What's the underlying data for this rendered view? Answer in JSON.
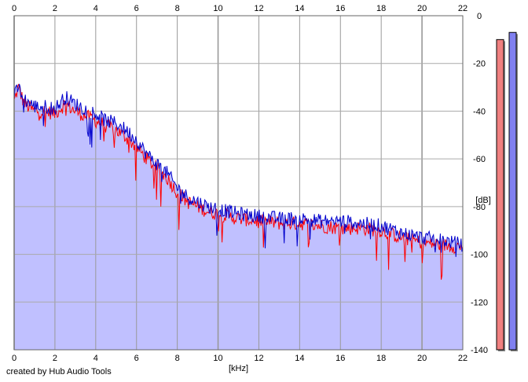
{
  "chart_data": {
    "type": "area",
    "title": "",
    "xlabel": "[kHz]",
    "ylabel": "[dB]",
    "xlim": [
      0,
      22
    ],
    "ylim": [
      -140,
      0
    ],
    "x_ticks_top": [
      "0",
      "2",
      "4",
      "6",
      "8",
      "10",
      "12",
      "14",
      "16",
      "18",
      "20",
      "22"
    ],
    "x_ticks_bottom": [
      "0",
      "2",
      "4",
      "6",
      "8",
      "10",
      "12",
      "14",
      "16",
      "18",
      "20",
      "22"
    ],
    "y_ticks": [
      "0",
      "-20",
      "-40",
      "-60",
      "-80",
      "-100",
      "-120",
      "-140"
    ],
    "grid": true,
    "colors": {
      "fill": "#c0c0ff",
      "red": "#ff0000",
      "blue": "#0000cc",
      "grid": "#aaaaaa"
    },
    "series": [
      {
        "color": "red",
        "x": [
          0,
          0.2,
          0.5,
          1,
          1.5,
          2,
          2.5,
          3,
          3.5,
          4,
          4.5,
          5,
          5.5,
          6,
          6.5,
          7,
          7.5,
          8,
          8.5,
          9,
          9.5,
          10,
          11,
          12,
          13,
          14,
          15,
          16,
          17,
          18,
          19,
          20,
          21,
          22
        ],
        "y": [
          -36,
          -30,
          -37,
          -40,
          -40,
          -41,
          -37,
          -40,
          -42,
          -44,
          -46,
          -48,
          -51,
          -55,
          -60,
          -64,
          -68,
          -74,
          -78,
          -80,
          -82,
          -83,
          -85,
          -86,
          -87,
          -87,
          -88,
          -89,
          -89,
          -90,
          -93,
          -95,
          -96,
          -97
        ]
      },
      {
        "color": "blue",
        "x": [
          0,
          0.2,
          0.5,
          1,
          1.5,
          2,
          2.5,
          3,
          3.5,
          4,
          4.5,
          5,
          5.5,
          6,
          6.5,
          7,
          7.5,
          8,
          8.5,
          9,
          9.5,
          10,
          11,
          12,
          13,
          14,
          15,
          16,
          17,
          18,
          19,
          20,
          21,
          22
        ],
        "y": [
          -34,
          -30,
          -35,
          -38,
          -38,
          -39,
          -34,
          -37,
          -39,
          -41,
          -44,
          -45,
          -48,
          -52,
          -58,
          -62,
          -66,
          -72,
          -76,
          -78,
          -80,
          -81,
          -83,
          -84,
          -85,
          -85,
          -86,
          -86,
          -87,
          -88,
          -91,
          -93,
          -94,
          -96
        ]
      }
    ],
    "level_meters": [
      {
        "color": "#f08080",
        "level_db": -10
      },
      {
        "color": "#8080f0",
        "level_db": -7
      }
    ]
  },
  "footer": {
    "credit": "created by Hub Audio Tools"
  }
}
